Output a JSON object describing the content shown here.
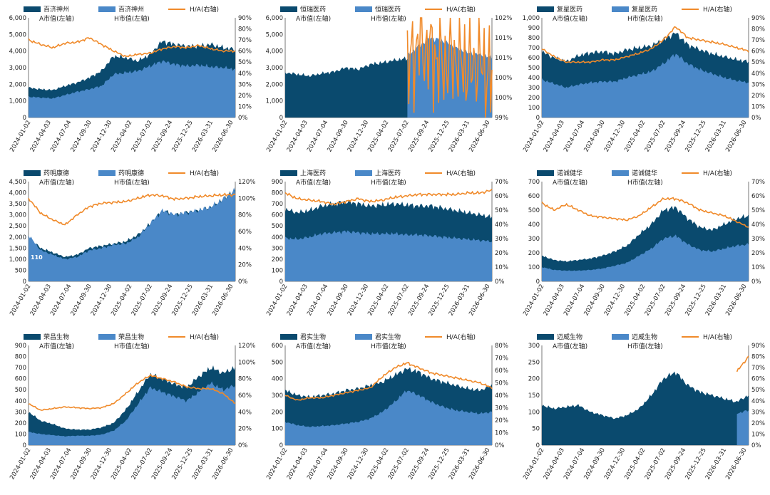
{
  "colors": {
    "a_series": "#0a4a6e",
    "h_series": "#4a88c8",
    "ratio_line": "#f08a2a"
  },
  "x_ticks": [
    "2024-01-02",
    "2024-04-03",
    "2024-07-04",
    "2024-09-30",
    "2024-12-30",
    "2025-04-02",
    "2025-07-02",
    "2025-09-24",
    "2025-12-25",
    "2026-03-31",
    "2026-06-30"
  ],
  "chart_data": [
    {
      "type": "area",
      "legend": [
        "百济神州",
        "百济神州",
        "H/A(右轴)"
      ],
      "legend_sub": [
        "A市值(左轴)",
        "H市值(左轴)"
      ],
      "x_ticks": [
        "2024-01-02",
        "2024-04-03",
        "2024-07-04",
        "2024-09-30",
        "2024-12-30",
        "2025-04-02",
        "2025-07-02",
        "2025-09-24",
        "2025-12-25",
        "2026-03-31",
        "2026-06-30"
      ],
      "ylim": [
        0,
        6000
      ],
      "yticks": [
        "0",
        "1,000",
        "2,000",
        "3,000",
        "4,000",
        "5,000",
        "6,000"
      ],
      "y2lim": [
        0,
        90
      ],
      "y2ticks": [
        "0%",
        "10%",
        "20%",
        "30%",
        "40%",
        "50%",
        "60%",
        "70%",
        "80%",
        "90%"
      ],
      "series": [
        {
          "name": "A市值(左轴)",
          "values": [
            1800,
            1700,
            1650,
            1900,
            2100,
            2400,
            2800,
            3700,
            3600,
            3400,
            3800,
            4600,
            4400,
            4300,
            4300,
            4400,
            4200,
            4100
          ]
        },
        {
          "name": "H市值(左轴)",
          "values": [
            1250,
            1200,
            1150,
            1350,
            1550,
            1700,
            1900,
            2600,
            2700,
            2800,
            3100,
            3400,
            3200,
            3100,
            3150,
            3050,
            3000,
            2900
          ]
        },
        {
          "name": "H/A(右轴)",
          "values": [
            70,
            66,
            63,
            67,
            68,
            72,
            66,
            60,
            55,
            57,
            58,
            62,
            64,
            63,
            65,
            62,
            60,
            60
          ]
        }
      ]
    },
    {
      "type": "area",
      "legend": [
        "恒瑞医药",
        "恒瑞医药",
        "H/A(右轴)"
      ],
      "legend_sub": [
        "A市值(左轴)",
        "H市值(左轴)"
      ],
      "x_ticks": [
        "2024-01-02",
        "2024-04-03",
        "2024-07-04",
        "2024-09-30",
        "2024-12-30",
        "2025-04-02",
        "2025-07-02",
        "2025-09-24",
        "2025-12-25",
        "2026-03-31",
        "2026-06-30"
      ],
      "ylim": [
        0,
        6000
      ],
      "yticks": [
        "0",
        "1,000",
        "2,000",
        "3,000",
        "4,000",
        "5,000",
        "6,000"
      ],
      "y2lim": [
        99,
        102
      ],
      "y2ticks": [
        "99%",
        "100%",
        "100%",
        "101%",
        "101%",
        "102%"
      ],
      "series": [
        {
          "name": "A市值(左轴)",
          "values": [
            2700,
            2600,
            2500,
            2650,
            2750,
            3000,
            2900,
            3200,
            3300,
            3450,
            3550,
            3650,
            3800,
            3700,
            3500,
            3300,
            3400,
            3200
          ]
        },
        {
          "name": "H市值(左轴)",
          "values": [
            null,
            null,
            null,
            null,
            null,
            null,
            null,
            null,
            null,
            null,
            3650,
            4300,
            4800,
            4600,
            4200,
            3900,
            3800,
            3600
          ]
        },
        {
          "name": "H/A(右轴)",
          "values": [
            null,
            null,
            null,
            null,
            null,
            null,
            null,
            null,
            null,
            null,
            100.3,
            101.3,
            100.9,
            100.6,
            100.8,
            100.5,
            100.7,
            100.1
          ]
        }
      ]
    },
    {
      "type": "area",
      "legend": [
        "复星医药",
        "复星医药",
        "H/A(右轴)"
      ],
      "legend_sub": [
        "A市值(左轴)",
        "H市值(左轴)"
      ],
      "x_ticks": [
        "2024-01-02",
        "2024-04-03",
        "2024-07-04",
        "2024-09-30",
        "2024-12-30",
        "2025-04-02",
        "2025-07-02",
        "2025-09-24",
        "2025-12-25",
        "2026-03-31",
        "2026-06-30"
      ],
      "ylim": [
        0,
        1000
      ],
      "yticks": [
        "0",
        "100",
        "200",
        "300",
        "400",
        "500",
        "600",
        "700",
        "800",
        "900",
        "1,000"
      ],
      "y2lim": [
        0,
        90
      ],
      "y2ticks": [
        "0%",
        "10%",
        "20%",
        "30%",
        "40%",
        "50%",
        "60%",
        "70%",
        "80%",
        "90%"
      ],
      "series": [
        {
          "name": "A市值(左轴)",
          "values": [
            660,
            600,
            560,
            620,
            650,
            660,
            640,
            680,
            700,
            720,
            780,
            850,
            730,
            680,
            640,
            610,
            580,
            560
          ]
        },
        {
          "name": "H市值(左轴)",
          "values": [
            380,
            340,
            300,
            330,
            350,
            360,
            360,
            400,
            430,
            460,
            540,
            640,
            540,
            480,
            440,
            400,
            370,
            350
          ]
        },
        {
          "name": "H/A(右轴)",
          "values": [
            62,
            55,
            50,
            50,
            50,
            52,
            52,
            55,
            58,
            62,
            70,
            82,
            72,
            70,
            68,
            66,
            63,
            60
          ]
        }
      ]
    },
    {
      "type": "area",
      "legend": [
        "药明康德",
        "药明康德",
        "H/A(右轴)"
      ],
      "legend_sub": [
        "A市值(左轴)",
        "H市值(左轴)"
      ],
      "annotation": "110",
      "x_ticks": [
        "2024-01-02",
        "2024-04-03",
        "2024-07-04",
        "2024-09-30",
        "2024-12-30",
        "2025-04-02",
        "2025-07-02",
        "2025-09-24",
        "2025-12-25",
        "2026-03-31",
        "2026-06-30"
      ],
      "ylim": [
        0,
        4500
      ],
      "yticks": [
        "0",
        "500",
        "1,000",
        "1,500",
        "2,000",
        "2,500",
        "3,000",
        "3,500",
        "4,000",
        "4,500"
      ],
      "y2lim": [
        0,
        120
      ],
      "y2ticks": [
        "0%",
        "20%",
        "40%",
        "60%",
        "80%",
        "100%",
        "120%"
      ],
      "series": [
        {
          "name": "A市值(左轴)",
          "values": [
            2000,
            1500,
            1300,
            1100,
            1200,
            1500,
            1600,
            1700,
            1800,
            2100,
            2600,
            3200,
            3000,
            3100,
            3200,
            3300,
            3700,
            4100
          ]
        },
        {
          "name": "H市值(左轴)",
          "values": [
            2100,
            1400,
            1200,
            1000,
            1100,
            1400,
            1500,
            1650,
            1700,
            2000,
            2600,
            3200,
            3000,
            3100,
            3200,
            3350,
            3700,
            4100
          ]
        },
        {
          "name": "H/A(右轴)",
          "values": [
            100,
            82,
            74,
            68,
            80,
            90,
            94,
            95,
            96,
            100,
            104,
            103,
            99,
            100,
            102,
            103,
            104,
            104
          ]
        }
      ]
    },
    {
      "type": "area",
      "legend": [
        "上海医药",
        "上海医药",
        "H/A(右轴)"
      ],
      "legend_sub": [
        "A市值(左轴)",
        "H市值(左轴)"
      ],
      "x_ticks": [
        "2024-01-02",
        "2024-04-03",
        "2024-07-04",
        "2024-09-30",
        "2024-12-30",
        "2025-04-02",
        "2025-07-02",
        "2025-09-24",
        "2025-12-25",
        "2026-03-31",
        "2026-06-30"
      ],
      "ylim": [
        0,
        900
      ],
      "yticks": [
        "0",
        "100",
        "200",
        "300",
        "400",
        "500",
        "600",
        "700",
        "800",
        "900"
      ],
      "y2lim": [
        0,
        70
      ],
      "y2ticks": [
        "0%",
        "10%",
        "20%",
        "30%",
        "40%",
        "50%",
        "60%",
        "70%"
      ],
      "series": [
        {
          "name": "A市值(左轴)",
          "values": [
            650,
            620,
            640,
            680,
            700,
            720,
            700,
            680,
            690,
            700,
            690,
            680,
            680,
            660,
            640,
            620,
            600,
            580
          ]
        },
        {
          "name": "H市值(左轴)",
          "values": [
            390,
            380,
            400,
            430,
            440,
            450,
            440,
            430,
            430,
            430,
            420,
            420,
            410,
            400,
            390,
            380,
            370,
            360
          ]
        },
        {
          "name": "H/A(右轴)",
          "values": [
            62,
            58,
            57,
            56,
            54,
            56,
            58,
            56,
            57,
            59,
            60,
            61,
            61,
            61,
            61,
            62,
            62,
            64
          ]
        }
      ]
    },
    {
      "type": "area",
      "legend": [
        "诺诚健华",
        "诺诚健华",
        "H/A(右轴)"
      ],
      "legend_sub": [
        "A市值(左轴)",
        "H市值(左轴)"
      ],
      "x_ticks": [
        "2024-01-02",
        "2024-04-03",
        "2024-07-04",
        "2024-09-30",
        "2024-12-30",
        "2025-04-02",
        "2025-07-02",
        "2025-09-24",
        "2025-12-25",
        "2026-03-31",
        "2026-06-30"
      ],
      "ylim": [
        0,
        700
      ],
      "yticks": [
        "0",
        "100",
        "200",
        "300",
        "400",
        "500",
        "600",
        "700"
      ],
      "y2lim": [
        0,
        70
      ],
      "y2ticks": [
        "0%",
        "10%",
        "20%",
        "30%",
        "40%",
        "50%",
        "60%",
        "70%"
      ],
      "series": [
        {
          "name": "A市值(左轴)",
          "values": [
            180,
            150,
            140,
            150,
            160,
            180,
            210,
            250,
            330,
            400,
            500,
            520,
            440,
            380,
            360,
            400,
            440,
            460
          ]
        },
        {
          "name": "H市值(左轴)",
          "values": [
            100,
            80,
            75,
            75,
            80,
            90,
            110,
            130,
            180,
            230,
            300,
            320,
            260,
            220,
            210,
            230,
            250,
            260
          ]
        },
        {
          "name": "H/A(右轴)",
          "values": [
            55,
            50,
            54,
            50,
            46,
            45,
            44,
            43,
            46,
            52,
            58,
            58,
            55,
            50,
            48,
            46,
            42,
            38
          ]
        }
      ]
    },
    {
      "type": "area",
      "legend": [
        "荣昌生物",
        "荣昌生物",
        "H/A(右轴)"
      ],
      "legend_sub": [
        "A市值(左轴)",
        "H市值(左轴)"
      ],
      "x_ticks": [
        "2024-01-02",
        "2024-04-03",
        "2024-07-04",
        "2024-09-30",
        "2024-12-30",
        "2025-04-02",
        "2025-07-02",
        "2025-09-24",
        "2025-12-25",
        "2026-03-31",
        "2026-06-30"
      ],
      "ylim": [
        0,
        900
      ],
      "yticks": [
        "0",
        "100",
        "200",
        "300",
        "400",
        "500",
        "600",
        "700",
        "800",
        "900"
      ],
      "y2lim": [
        0,
        120
      ],
      "y2ticks": [
        "0%",
        "20%",
        "40%",
        "60%",
        "80%",
        "100%",
        "120%"
      ],
      "series": [
        {
          "name": "A市值(左轴)",
          "values": [
            300,
            220,
            190,
            150,
            140,
            140,
            160,
            200,
            320,
            480,
            640,
            600,
            550,
            520,
            620,
            700,
            650,
            700
          ]
        },
        {
          "name": "H市值(左轴)",
          "values": [
            120,
            100,
            90,
            80,
            85,
            85,
            95,
            130,
            220,
            370,
            520,
            480,
            440,
            400,
            480,
            560,
            500,
            540
          ]
        },
        {
          "name": "H/A(右轴)",
          "values": [
            50,
            42,
            44,
            46,
            45,
            44,
            45,
            50,
            62,
            75,
            84,
            80,
            76,
            70,
            68,
            68,
            62,
            50
          ]
        }
      ]
    },
    {
      "type": "area",
      "legend": [
        "君实生物",
        "君实生物",
        "H/A(右轴)"
      ],
      "legend_sub": [
        "A市值(左轴)",
        "H市值(左轴)"
      ],
      "x_ticks": [
        "2024-01-02",
        "2024-04-03",
        "2024-07-04",
        "2024-09-30",
        "2024-12-30",
        "2025-04-02",
        "2025-07-02",
        "2025-09-24",
        "2025-12-25",
        "2026-03-31",
        "2026-06-30"
      ],
      "ylim": [
        0,
        600
      ],
      "yticks": [
        "0",
        "100",
        "200",
        "300",
        "400",
        "500",
        "600"
      ],
      "y2lim": [
        0,
        80
      ],
      "y2ticks": [
        "0%",
        "10%",
        "20%",
        "30%",
        "40%",
        "50%",
        "60%",
        "70%",
        "80%"
      ],
      "series": [
        {
          "name": "A市值(左轴)",
          "values": [
            330,
            300,
            290,
            300,
            310,
            330,
            340,
            360,
            380,
            420,
            460,
            440,
            400,
            380,
            360,
            340,
            330,
            360
          ]
        },
        {
          "name": "H市值(左轴)",
          "values": [
            140,
            120,
            110,
            115,
            120,
            130,
            140,
            160,
            200,
            260,
            330,
            300,
            260,
            230,
            210,
            200,
            190,
            200
          ]
        },
        {
          "name": "H/A(右轴)",
          "values": [
            40,
            36,
            38,
            38,
            40,
            42,
            44,
            46,
            55,
            62,
            66,
            62,
            58,
            56,
            54,
            52,
            50,
            46
          ]
        }
      ]
    },
    {
      "type": "area",
      "legend": [
        "迈威生物",
        "迈威生物",
        "H/A(右轴)"
      ],
      "legend_sub": [
        "A市值(左轴)",
        "H市值(左轴)"
      ],
      "x_ticks": [
        "2024-01-02",
        "2024-04-03",
        "2024-07-04",
        "2024-09-30",
        "2024-12-30",
        "2025-04-02",
        "2025-07-02",
        "2025-09-24",
        "2025-12-25",
        "2026-03-31",
        "2026-06-30"
      ],
      "ylim": [
        0,
        300
      ],
      "yticks": [
        "0",
        "50",
        "100",
        "150",
        "200",
        "250",
        "300"
      ],
      "y2lim": [
        0,
        90
      ],
      "y2ticks": [
        "0%",
        "10%",
        "20%",
        "30%",
        "40%",
        "50%",
        "60%",
        "70%",
        "80%",
        "90%"
      ],
      "series": [
        {
          "name": "A市值(左轴)",
          "values": [
            120,
            110,
            115,
            120,
            100,
            90,
            80,
            90,
            110,
            150,
            200,
            220,
            180,
            160,
            150,
            140,
            130,
            150
          ]
        },
        {
          "name": "H市值(左轴)",
          "values": [
            null,
            null,
            null,
            null,
            null,
            null,
            null,
            null,
            null,
            null,
            null,
            null,
            null,
            null,
            null,
            null,
            95,
            105
          ]
        },
        {
          "name": "H/A(右轴)",
          "values": [
            null,
            null,
            null,
            null,
            null,
            null,
            null,
            null,
            null,
            null,
            null,
            null,
            null,
            null,
            null,
            null,
            66,
            80
          ]
        }
      ]
    }
  ]
}
